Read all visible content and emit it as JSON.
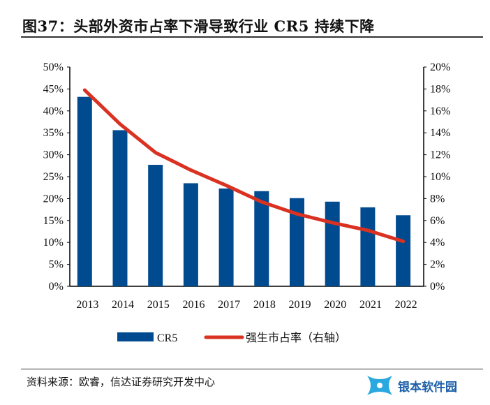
{
  "title": "图37：头部外资市占率下滑导致行业 CR5 持续下降",
  "source": "资料来源：欧睿，信达证券研究开发中心",
  "logo_text": "银本软件园",
  "chart_data": {
    "type": "bar+line",
    "categories": [
      "2013",
      "2014",
      "2015",
      "2016",
      "2017",
      "2018",
      "2019",
      "2020",
      "2021",
      "2022"
    ],
    "series": [
      {
        "name": "CR5",
        "type": "bar",
        "axis": "left",
        "color": "#004a8f",
        "values": [
          43.2,
          35.6,
          27.7,
          23.5,
          22.3,
          21.7,
          20.1,
          19.3,
          18.0,
          16.2
        ]
      },
      {
        "name": "强生市占率（右轴）",
        "type": "line",
        "axis": "right",
        "color": "#d93222",
        "values": [
          17.9,
          14.8,
          12.2,
          10.6,
          9.2,
          7.7,
          6.6,
          5.8,
          5.1,
          4.1
        ]
      }
    ],
    "left_axis": {
      "ylim": [
        0,
        50
      ],
      "ticks": [
        "0%",
        "5%",
        "10%",
        "15%",
        "20%",
        "25%",
        "30%",
        "35%",
        "40%",
        "45%",
        "50%"
      ]
    },
    "right_axis": {
      "ylim": [
        0,
        20
      ],
      "ticks": [
        "0%",
        "2%",
        "4%",
        "6%",
        "8%",
        "10%",
        "12%",
        "14%",
        "16%",
        "18%",
        "20%"
      ]
    },
    "legend_position": "bottom",
    "grid": false
  }
}
